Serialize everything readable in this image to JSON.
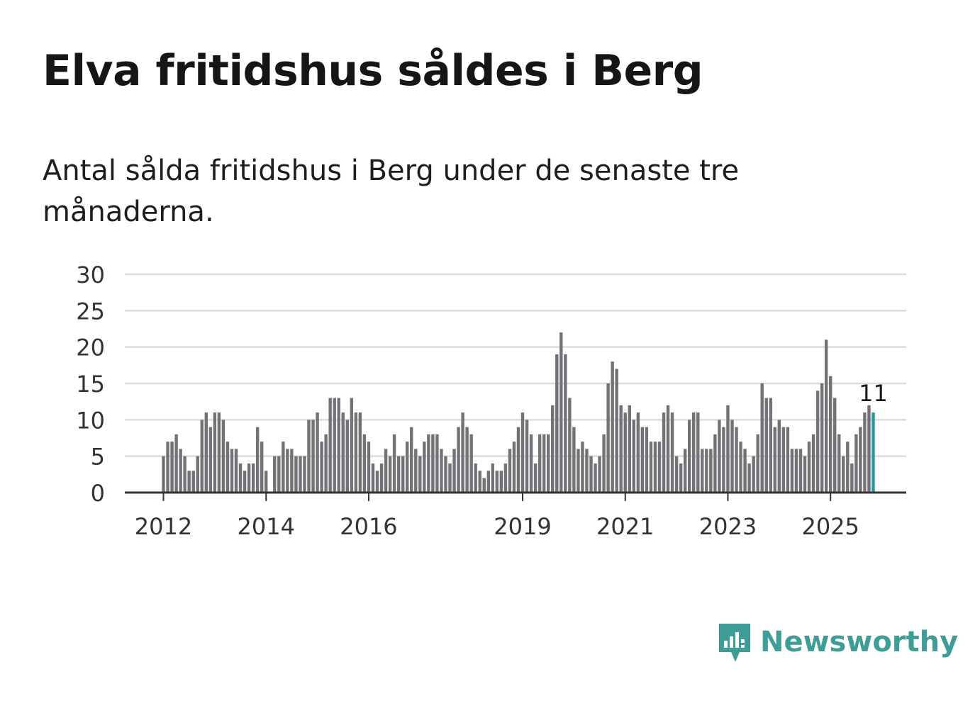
{
  "title": "Elva fritidshus såldes i Berg",
  "subtitle": "Antal sålda fritidshus i Berg under de senaste tre månaderna.",
  "brand": {
    "name": "Newsworthy",
    "icon": "newsworthy-logo-icon",
    "color": "#3f9d98"
  },
  "chart_data": {
    "type": "bar",
    "x_start": "2012-01",
    "frequency": "monthly",
    "values": [
      5,
      7,
      7,
      8,
      6,
      5,
      3,
      3,
      5,
      10,
      11,
      9,
      11,
      11,
      10,
      7,
      6,
      6,
      4,
      3,
      4,
      4,
      9,
      7,
      3,
      0,
      5,
      5,
      7,
      6,
      6,
      5,
      5,
      5,
      10,
      10,
      11,
      7,
      8,
      13,
      13,
      13,
      11,
      10,
      13,
      11,
      11,
      8,
      7,
      4,
      3,
      4,
      6,
      5,
      8,
      5,
      5,
      7,
      9,
      6,
      5,
      7,
      8,
      8,
      8,
      6,
      5,
      4,
      6,
      9,
      11,
      9,
      8,
      4,
      3,
      2,
      3,
      4,
      3,
      3,
      4,
      6,
      7,
      9,
      11,
      10,
      8,
      4,
      8,
      8,
      8,
      12,
      19,
      22,
      19,
      13,
      9,
      6,
      7,
      6,
      5,
      4,
      5,
      8,
      15,
      18,
      17,
      12,
      11,
      12,
      10,
      11,
      9,
      9,
      7,
      7,
      7,
      11,
      12,
      11,
      5,
      4,
      6,
      10,
      11,
      11,
      6,
      6,
      6,
      8,
      10,
      9,
      12,
      10,
      9,
      7,
      6,
      4,
      5,
      8,
      15,
      13,
      13,
      9,
      10,
      9,
      9,
      6,
      6,
      6,
      5,
      7,
      8,
      14,
      15,
      21,
      16,
      13,
      8,
      5,
      7,
      4,
      8,
      9,
      11,
      12,
      11
    ],
    "highlight_last": true,
    "highlight_label": "11",
    "xticks": [
      "2012",
      "2014",
      "2016",
      "2019",
      "2021",
      "2023",
      "2025"
    ],
    "yticks": [
      "0",
      "5",
      "10",
      "15",
      "20",
      "25",
      "30"
    ],
    "ylim": [
      0,
      30
    ],
    "grid": true,
    "colors": {
      "bar": "#737276",
      "highlight": "#1f9a96",
      "grid": "#dcdcdc",
      "axis": "#333333"
    }
  }
}
